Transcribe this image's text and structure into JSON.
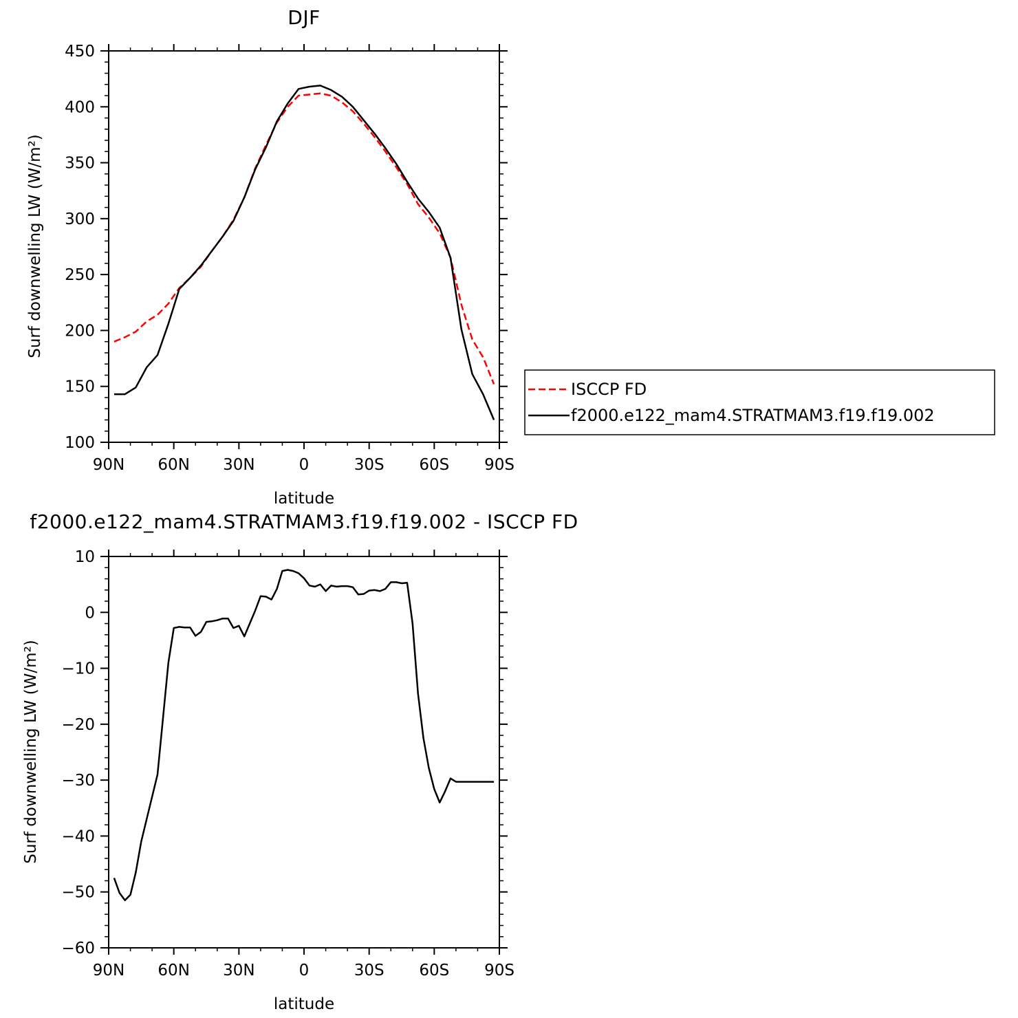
{
  "chart_data": [
    {
      "type": "line",
      "title": "DJF",
      "xlabel": "latitude",
      "ylabel": "Surf downwelling LW (W/m²)",
      "xlim": [
        90,
        -90
      ],
      "ylim": [
        100,
        450
      ],
      "xticks": [
        90,
        60,
        30,
        0,
        -30,
        -60,
        -90
      ],
      "xtick_labels": [
        "90N",
        "60N",
        "30N",
        "0",
        "30S",
        "60S",
        "90S"
      ],
      "yticks": [
        100,
        150,
        200,
        250,
        300,
        350,
        400,
        450
      ],
      "legend_position": "right",
      "series": [
        {
          "name": "ISCCP FD",
          "color": "#ff0000",
          "dash": true,
          "x": [
            87.5,
            82.5,
            77.5,
            72.5,
            67.5,
            62.5,
            57.5,
            52.5,
            47.5,
            42.5,
            37.5,
            32.5,
            27.5,
            22.5,
            17.5,
            12.5,
            7.5,
            2.5,
            -2.5,
            -7.5,
            -12.5,
            -17.5,
            -22.5,
            -27.5,
            -32.5,
            -37.5,
            -42.5,
            -47.5,
            -52.5,
            -57.5,
            -62.5,
            -67.5,
            -72.5,
            -77.5,
            -82.5,
            -87.5
          ],
          "y": [
            190,
            194,
            199,
            208,
            214,
            224,
            238,
            247,
            257,
            271,
            284,
            299,
            319,
            345,
            366,
            386,
            400,
            410,
            411,
            412,
            410,
            404,
            396,
            385,
            373,
            360,
            346,
            331,
            313,
            301,
            287,
            265,
            223,
            192,
            176,
            152
          ]
        },
        {
          "name": "f2000.e122_mam4.STRATMAM3.f19.f19.002",
          "color": "#000000",
          "dash": false,
          "x": [
            87.5,
            82.5,
            77.5,
            72.5,
            67.5,
            62.5,
            57.5,
            52.5,
            47.5,
            42.5,
            37.5,
            32.5,
            27.5,
            22.5,
            17.5,
            12.5,
            7.5,
            2.5,
            -2.5,
            -7.5,
            -12.5,
            -17.5,
            -22.5,
            -27.5,
            -32.5,
            -37.5,
            -42.5,
            -47.5,
            -52.5,
            -57.5,
            -62.5,
            -67.5,
            -72.5,
            -77.5,
            -82.5,
            -87.5
          ],
          "y": [
            143,
            143,
            149,
            167,
            178,
            206,
            237,
            247,
            258,
            271,
            284,
            298,
            319,
            344,
            364,
            387,
            403,
            416,
            418,
            419,
            415,
            409,
            400,
            388,
            376,
            363,
            349,
            333,
            318,
            306,
            292,
            265,
            201,
            161,
            143,
            120
          ]
        }
      ]
    },
    {
      "type": "line",
      "title": "f2000.e122_mam4.STRATMAM3.f19.f19.002 - ISCCP FD",
      "xlabel": "latitude",
      "ylabel": "Surf downwelling LW (W/m²)",
      "xlim": [
        90,
        -90
      ],
      "ylim": [
        -60,
        10
      ],
      "xticks": [
        90,
        60,
        30,
        0,
        -30,
        -60,
        -90
      ],
      "xtick_labels": [
        "90N",
        "60N",
        "30N",
        "0",
        "30S",
        "60S",
        "90S"
      ],
      "yticks": [
        -60,
        -50,
        -40,
        -30,
        -20,
        -10,
        0,
        10
      ],
      "series": [
        {
          "color": "#000000",
          "dash": false,
          "x": [
            87.5,
            85,
            82.5,
            80,
            77.5,
            75,
            72.5,
            70,
            67.5,
            65,
            62.5,
            60,
            57.5,
            55,
            52.5,
            50,
            47.5,
            45,
            42.5,
            40,
            37.5,
            35,
            32.5,
            30,
            27.5,
            25,
            22.5,
            20,
            17.5,
            15,
            12.5,
            10,
            7.5,
            5,
            2.5,
            0,
            -2.5,
            -5,
            -7.5,
            -10,
            -12.5,
            -15,
            -17.5,
            -20,
            -22.5,
            -25,
            -27.5,
            -30,
            -32.5,
            -35,
            -37.5,
            -40,
            -42.5,
            -45,
            -47.5,
            -50,
            -52.5,
            -55,
            -57.5,
            -60,
            -62.5,
            -65,
            -67.5,
            -70,
            -72.5,
            -75,
            -77.5,
            -80,
            -82.5,
            -85,
            -87.5
          ],
          "y": [
            -47.5,
            -50.2,
            -51.5,
            -50.5,
            -46.5,
            -41,
            -37,
            -33,
            -29,
            -19,
            -9,
            -2.8,
            -2.6,
            -2.7,
            -2.7,
            -4.2,
            -3.5,
            -1.7,
            -1.6,
            -1.4,
            -1.1,
            -1.1,
            -2.8,
            -2.4,
            -4.3,
            -2.0,
            0.3,
            2.9,
            2.8,
            2.3,
            4.2,
            7.4,
            7.6,
            7.4,
            7.0,
            6.1,
            4.8,
            4.6,
            5.0,
            3.8,
            4.8,
            4.6,
            4.7,
            4.7,
            4.5,
            3.2,
            3.3,
            3.9,
            4.0,
            3.8,
            4.2,
            5.4,
            5.4,
            5.2,
            5.3,
            -2.0,
            -14.5,
            -22.5,
            -27.8,
            -31.6,
            -34.0,
            -32.0,
            -29.7,
            -30.3,
            -30.3,
            -30.3,
            -30.3,
            -30.3,
            -30.3,
            -30.3,
            -30.3
          ]
        }
      ]
    }
  ]
}
